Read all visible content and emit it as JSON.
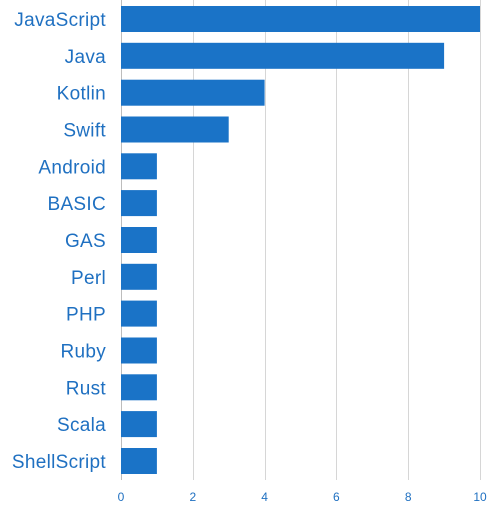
{
  "chart_data": {
    "type": "bar",
    "orientation": "horizontal",
    "categories": [
      "JavaScript",
      "Java",
      "Kotlin",
      "Swift",
      "Android",
      "BASIC",
      "GAS",
      "Perl",
      "PHP",
      "Ruby",
      "Rust",
      "Scala",
      "ShellScript"
    ],
    "values": [
      10,
      9,
      4,
      3,
      1,
      1,
      1,
      1,
      1,
      1,
      1,
      1,
      1
    ],
    "xlim": [
      0,
      10
    ],
    "xticks": [
      "0",
      "2",
      "4",
      "6",
      "8",
      "10"
    ],
    "grid": true,
    "colors": {
      "bar": "#1a73c7",
      "label": "#1f70c1",
      "grid": "#d6d6d6"
    }
  }
}
